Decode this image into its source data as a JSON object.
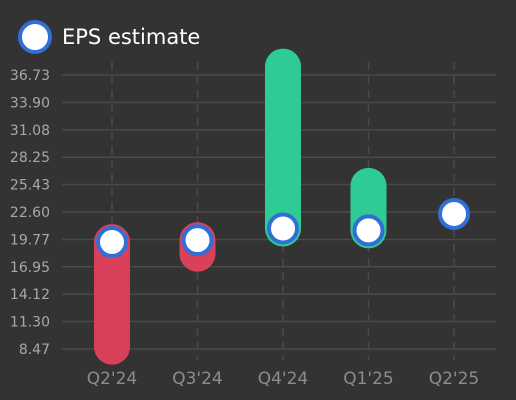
{
  "legend": {
    "label": "EPS estimate",
    "position": "top-left"
  },
  "colors": {
    "background": "#333333",
    "grid": "#4a4a4a",
    "beat": "#2ecc94",
    "miss": "#d9405a",
    "marker_fill": "#ffffff",
    "marker_stroke": "#2f6fd6"
  },
  "chart_data": {
    "type": "bar",
    "title": "",
    "xlabel": "",
    "ylabel": "",
    "categories": [
      "Q2'24",
      "Q3'24",
      "Q4'24",
      "Q1'25",
      "Q2'25"
    ],
    "y_ticks": [
      "8.47",
      "11.30",
      "14.12",
      "16.95",
      "19.77",
      "22.60",
      "25.43",
      "28.25",
      "31.08",
      "33.90",
      "36.73"
    ],
    "ylim": [
      7.0,
      39.5
    ],
    "grid": true,
    "series": [
      {
        "name": "EPS estimate",
        "values": [
          19.5,
          19.7,
          20.9,
          20.7,
          22.4
        ]
      },
      {
        "values": [
          8.7,
          18.3,
          37.6,
          25.3,
          null
        ]
      }
    ]
  }
}
